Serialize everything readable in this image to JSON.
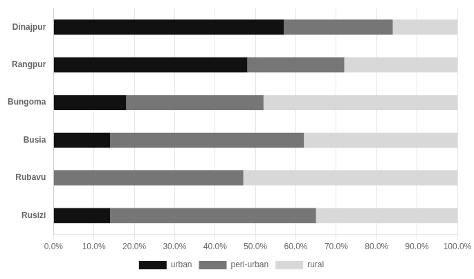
{
  "chart_data": {
    "type": "bar",
    "orientation": "horizontal",
    "stacked": true,
    "categories": [
      "Dinajpur",
      "Rangpur",
      "Bungoma",
      "Busia",
      "Rubavu",
      "Rusizi"
    ],
    "series": [
      {
        "name": "urban",
        "color": "#111111",
        "values": [
          0.57,
          0.48,
          0.18,
          0.14,
          0.0,
          0.14
        ]
      },
      {
        "name": "peri-urban",
        "color": "#767676",
        "values": [
          0.27,
          0.24,
          0.34,
          0.48,
          0.47,
          0.51
        ]
      },
      {
        "name": "rural",
        "color": "#d8d8d8",
        "values": [
          0.16,
          0.28,
          0.48,
          0.38,
          0.53,
          0.35
        ]
      }
    ],
    "xlim": [
      0.0,
      1.0
    ],
    "xticks": [
      {
        "value": 0.0,
        "label": "0.0%"
      },
      {
        "value": 0.1,
        "label": "10.0%"
      },
      {
        "value": 0.2,
        "label": "20.0%"
      },
      {
        "value": 0.3,
        "label": "30.0%"
      },
      {
        "value": 0.4,
        "label": "40.0%"
      },
      {
        "value": 0.5,
        "label": "50.0%"
      },
      {
        "value": 0.6,
        "label": "60.0%"
      },
      {
        "value": 0.7,
        "label": "70.0%"
      },
      {
        "value": 0.8,
        "label": "80.0%"
      },
      {
        "value": 0.9,
        "label": "90.0%"
      },
      {
        "value": 1.0,
        "label": "100.0%"
      }
    ],
    "grid": true,
    "legend": "bottom"
  }
}
